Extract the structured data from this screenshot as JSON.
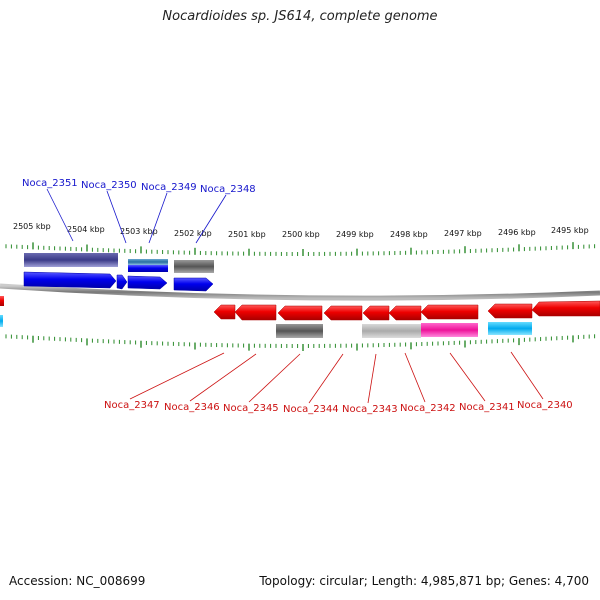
{
  "title": "Nocardioides sp. JS614, complete genome",
  "footer": {
    "accession": "Accession: NC_008699",
    "summary": "Topology: circular; Length: 4,985,871 bp; Genes: 4,700"
  },
  "colors": {
    "forward_gene": "#0000ee",
    "reverse_gene": "#ee0000",
    "backbone": "#888888",
    "tick": "#2a8a2a"
  },
  "ruler": {
    "labels": [
      "2505 kbp",
      "2504 kbp",
      "2503 kbp",
      "2502 kbp",
      "2501 kbp",
      "2500 kbp",
      "2499 kbp",
      "2498 kbp",
      "2497 kbp",
      "2496 kbp",
      "2495 kbp"
    ]
  },
  "genes_top": [
    "Noca_2351",
    "Noca_2350",
    "Noca_2349",
    "Noca_2348"
  ],
  "genes_bottom": [
    "Noca_2347",
    "Noca_2346",
    "Noca_2345",
    "Noca_2344",
    "Noca_2343",
    "Noca_2342",
    "Noca_2341",
    "Noca_2340"
  ]
}
